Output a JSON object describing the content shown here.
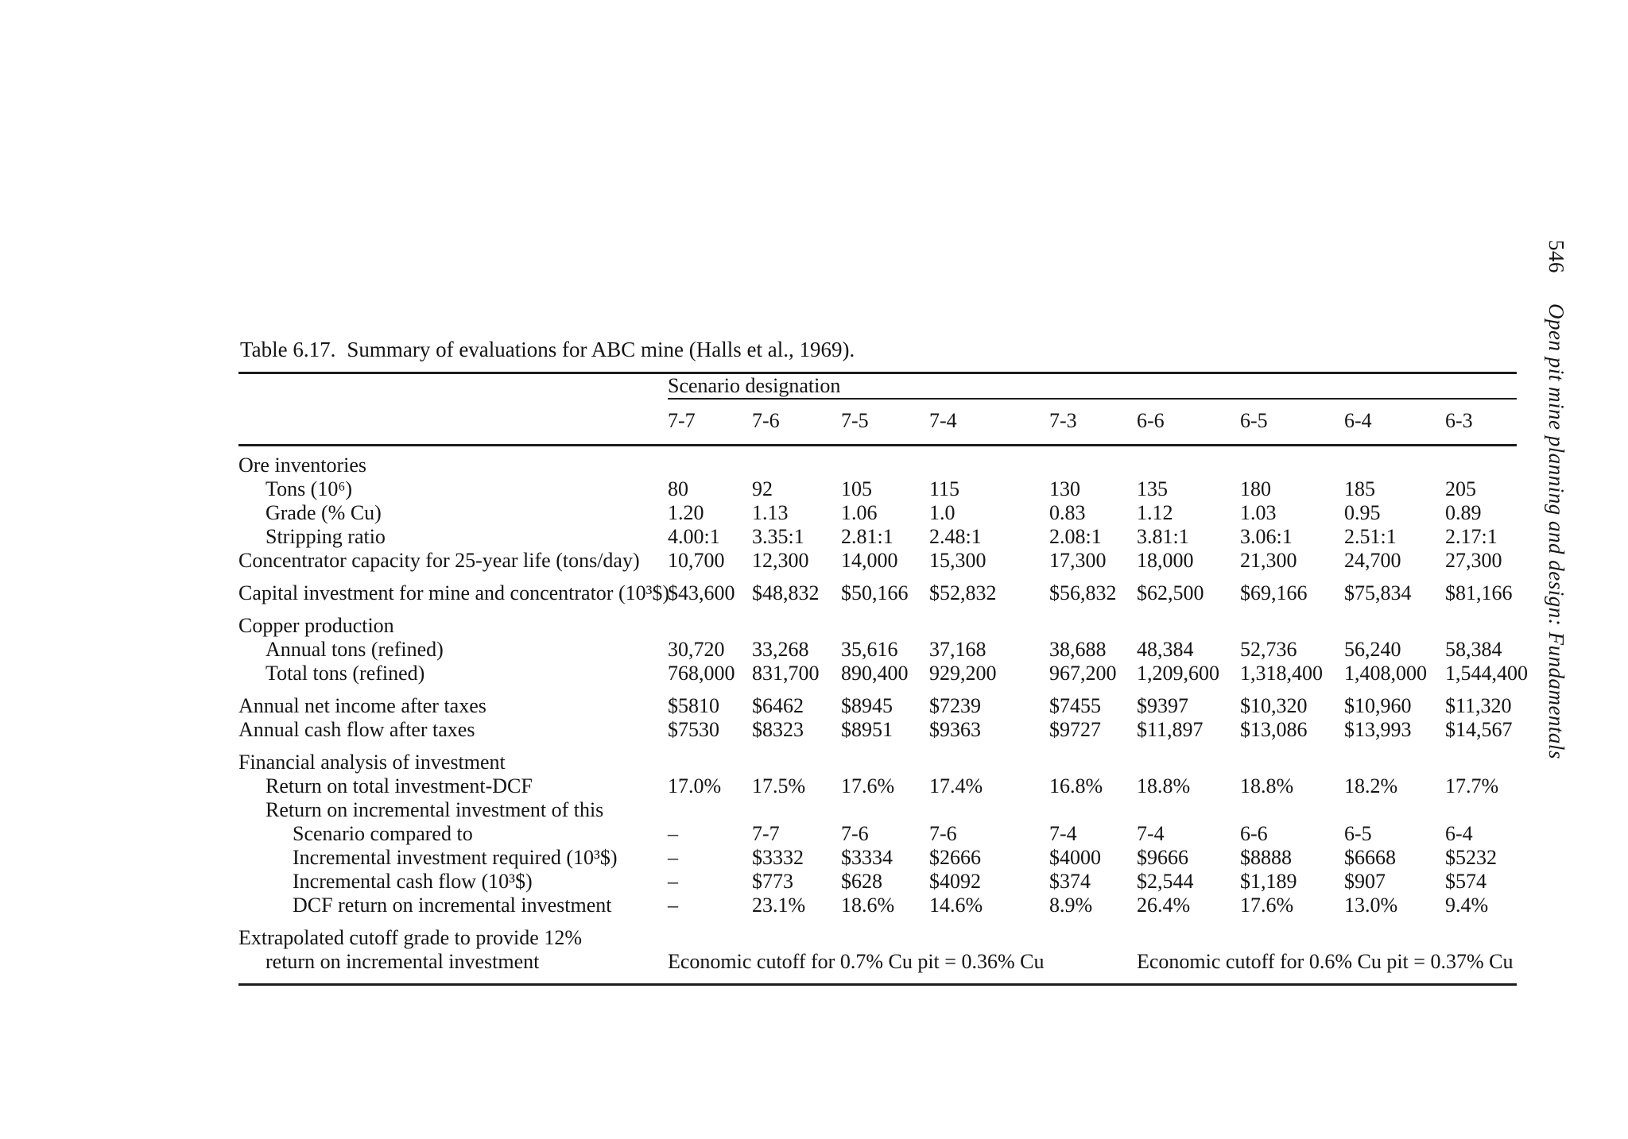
{
  "page": {
    "title_label": "Table 6.17.",
    "title_text": "Summary of evaluations for ABC mine (Halls et al., 1969).",
    "page_number": "546",
    "book_title": "Open pit mine planning and design: Fundamentals"
  },
  "table": {
    "group_header": "Scenario designation",
    "columns": [
      "7-7",
      "7-6",
      "7-5",
      "7-4",
      "7-3",
      "6-6",
      "6-5",
      "6-4",
      "6-3"
    ],
    "rows": [
      {
        "type": "section",
        "indent": 0,
        "label": "Ore inventories"
      },
      {
        "type": "data",
        "indent": 1,
        "label": "Tons (10⁶)",
        "values": [
          "80",
          "92",
          "105",
          "115",
          "130",
          "135",
          "180",
          "185",
          "205"
        ]
      },
      {
        "type": "data",
        "indent": 1,
        "label": "Grade (% Cu)",
        "values": [
          "1.20",
          "1.13",
          "1.06",
          "1.0",
          "0.83",
          "1.12",
          "1.03",
          "0.95",
          "0.89"
        ]
      },
      {
        "type": "data",
        "indent": 1,
        "label": "Stripping ratio",
        "values": [
          "4.00:1",
          "3.35:1",
          "2.81:1",
          "2.48:1",
          "2.08:1",
          "3.81:1",
          "3.06:1",
          "2.51:1",
          "2.17:1"
        ]
      },
      {
        "type": "data",
        "indent": 0,
        "label": "Concentrator capacity for 25-year life (tons/day)",
        "values": [
          "10,700",
          "12,300",
          "14,000",
          "15,300",
          "17,300",
          "18,000",
          "21,300",
          "24,700",
          "27,300"
        ]
      },
      {
        "type": "data",
        "indent": 0,
        "gap": true,
        "label": "Capital investment for mine and concentrator (10³$)",
        "values": [
          "$43,600",
          "$48,832",
          "$50,166",
          "$52,832",
          "$56,832",
          "$62,500",
          "$69,166",
          "$75,834",
          "$81,166"
        ]
      },
      {
        "type": "section",
        "indent": 0,
        "gap": true,
        "label": "Copper production"
      },
      {
        "type": "data",
        "indent": 1,
        "label": "Annual tons (refined)",
        "values": [
          "30,720",
          "33,268",
          "35,616",
          "37,168",
          "38,688",
          "48,384",
          "52,736",
          "56,240",
          "58,384"
        ]
      },
      {
        "type": "data",
        "indent": 1,
        "label": "Total tons (refined)",
        "values": [
          "768,000",
          "831,700",
          "890,400",
          "929,200",
          "967,200",
          "1,209,600",
          "1,318,400",
          "1,408,000",
          "1,544,400"
        ]
      },
      {
        "type": "data",
        "indent": 0,
        "gap": true,
        "label": "Annual net income after taxes",
        "values": [
          "$5810",
          "$6462",
          "$8945",
          "$7239",
          "$7455",
          "$9397",
          "$10,320",
          "$10,960",
          "$11,320"
        ]
      },
      {
        "type": "data",
        "indent": 0,
        "label": "Annual cash flow after taxes",
        "values": [
          "$7530",
          "$8323",
          "$8951",
          "$9363",
          "$9727",
          "$11,897",
          "$13,086",
          "$13,993",
          "$14,567"
        ]
      },
      {
        "type": "section",
        "indent": 0,
        "gap": true,
        "label": "Financial analysis of investment"
      },
      {
        "type": "data",
        "indent": 1,
        "label": "Return on total investment-DCF",
        "values": [
          "17.0%",
          "17.5%",
          "17.6%",
          "17.4%",
          "16.8%",
          "18.8%",
          "18.8%",
          "18.2%",
          "17.7%"
        ]
      },
      {
        "type": "section",
        "indent": 1,
        "label": "Return on incremental investment of this"
      },
      {
        "type": "data",
        "indent": 2,
        "label": "Scenario compared to",
        "values": [
          "–",
          "7-7",
          "7-6",
          "7-6",
          "7-4",
          "7-4",
          "6-6",
          "6-5",
          "6-4"
        ]
      },
      {
        "type": "data",
        "indent": 2,
        "label": "Incremental investment required (10³$)",
        "values": [
          "–",
          "$3332",
          "$3334",
          "$2666",
          "$4000",
          "$9666",
          "$8888",
          "$6668",
          "$5232"
        ]
      },
      {
        "type": "data",
        "indent": 2,
        "label": "Incremental cash flow (10³$)",
        "values": [
          "–",
          "$773",
          "$628",
          "$4092",
          "$374",
          "$2,544",
          "$1,189",
          "$907",
          "$574"
        ]
      },
      {
        "type": "data",
        "indent": 2,
        "label": "DCF return on incremental investment",
        "values": [
          "–",
          "23.1%",
          "18.6%",
          "14.6%",
          "8.9%",
          "26.4%",
          "17.6%",
          "13.0%",
          "9.4%"
        ]
      },
      {
        "type": "cutoff",
        "gap": true,
        "label_line1": "Extrapolated cutoff grade to provide 12%",
        "label_line2": "return on incremental investment",
        "span1": "Economic cutoff for 0.7% Cu pit = 0.36% Cu",
        "span2": "Economic cutoff for 0.6% Cu pit = 0.37% Cu"
      }
    ]
  }
}
